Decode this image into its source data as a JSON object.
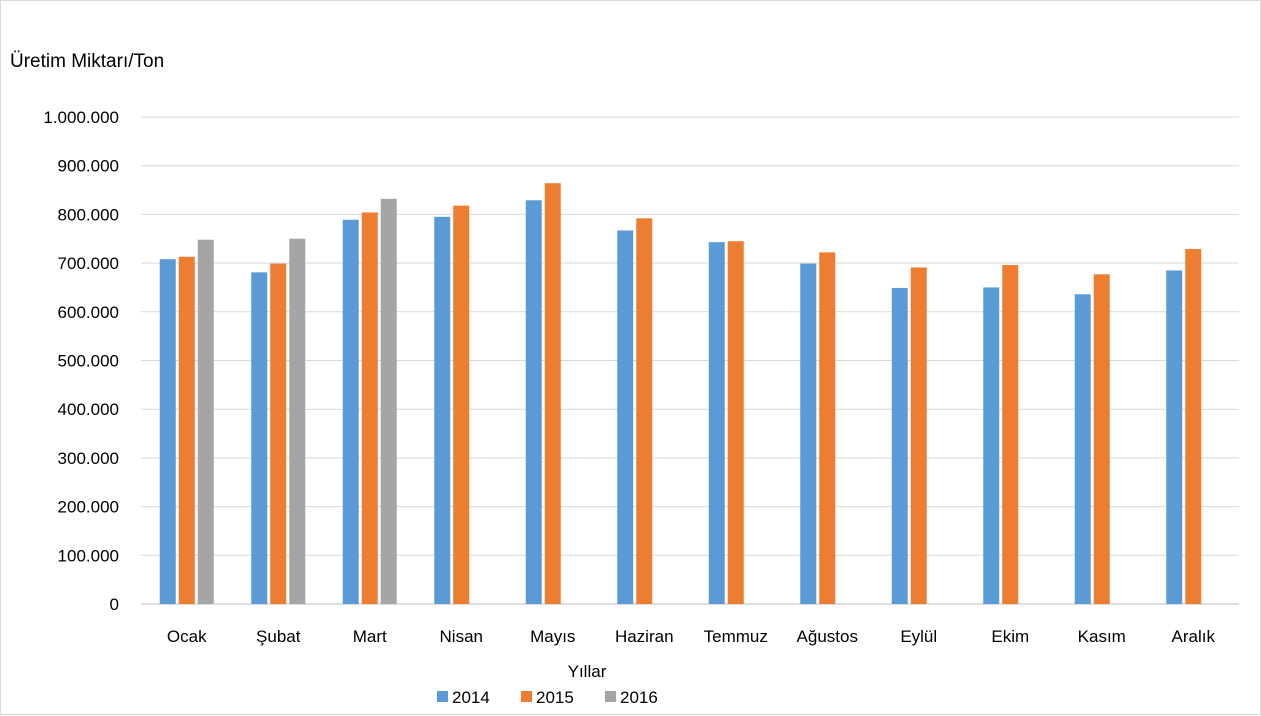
{
  "chart_data": {
    "type": "bar",
    "ylabel": "Üretim Miktarı/Ton",
    "xlabel": "Yıllar",
    "ylim": [
      0,
      1000000
    ],
    "yticks": [
      "0",
      "100.000",
      "200.000",
      "300.000",
      "400.000",
      "500.000",
      "600.000",
      "700.000",
      "800.000",
      "900.000",
      "1.000.000"
    ],
    "categories": [
      "Ocak",
      "Şubat",
      "Mart",
      "Nisan",
      "Mayıs",
      "Haziran",
      "Temmuz",
      "Ağustos",
      "Eylül",
      "Ekim",
      "Kasım",
      "Aralık"
    ],
    "series": [
      {
        "name": "2014",
        "color": "#5b9bd5",
        "values": [
          708000,
          681000,
          789000,
          795000,
          829000,
          767000,
          743000,
          699000,
          649000,
          650000,
          636000,
          685000
        ]
      },
      {
        "name": "2015",
        "color": "#ed7d31",
        "values": [
          713000,
          699000,
          804000,
          818000,
          864000,
          792000,
          745000,
          722000,
          691000,
          696000,
          677000,
          729000
        ]
      },
      {
        "name": "2016",
        "color": "#a5a5a5",
        "values": [
          748000,
          750000,
          832000,
          null,
          null,
          null,
          null,
          null,
          null,
          null,
          null,
          null
        ]
      }
    ],
    "grid": true,
    "legend_position": "bottom"
  }
}
